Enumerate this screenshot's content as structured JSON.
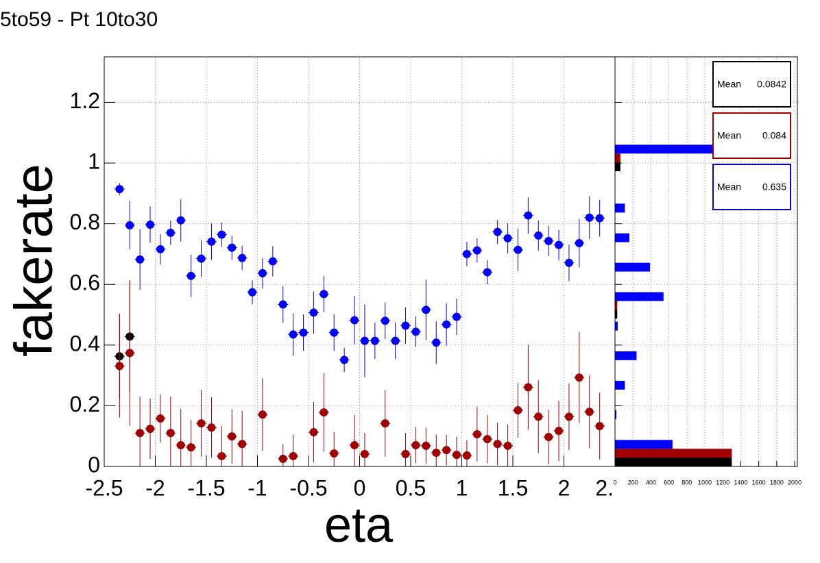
{
  "chart_data": [
    {
      "type": "scatter",
      "title": "5to59 - Pt 10to30",
      "xlabel": "eta",
      "ylabel": "fakerate",
      "x": [
        -2.35,
        -2.25,
        -2.15,
        -2.05,
        -1.95,
        -1.85,
        -1.75,
        -1.65,
        -1.55,
        -1.45,
        -1.35,
        -1.25,
        -1.15,
        -1.05,
        -0.95,
        -0.85,
        -0.75,
        -0.65,
        -0.55,
        -0.45,
        -0.35,
        -0.25,
        -0.15,
        -0.05,
        0.05,
        0.15,
        0.25,
        0.35,
        0.45,
        0.55,
        0.65,
        0.75,
        0.85,
        0.95,
        1.05,
        1.15,
        1.25,
        1.35,
        1.45,
        1.55,
        1.65,
        1.75,
        1.85,
        1.95,
        2.05,
        2.15,
        2.25,
        2.35
      ],
      "series": [
        {
          "color": "#000000",
          "values": [
            0.363,
            0.428,
            null,
            null,
            null,
            null,
            null,
            null,
            null,
            null,
            null,
            null,
            null,
            null,
            null,
            null,
            null,
            null,
            null,
            null,
            null,
            null,
            null,
            null,
            null,
            null,
            null,
            null,
            null,
            null,
            null,
            null,
            null,
            null,
            null,
            null,
            null,
            null,
            null,
            null,
            null,
            null,
            null,
            null,
            null,
            null,
            null,
            null
          ],
          "errors": [
            0.14,
            0.18,
            null,
            null,
            null,
            null,
            null,
            null,
            null,
            null,
            null,
            null,
            null,
            null,
            null,
            null,
            null,
            null,
            null,
            null,
            null,
            null,
            null,
            null,
            null,
            null,
            null,
            null,
            null,
            null,
            null,
            null,
            null,
            null,
            null,
            null,
            null,
            null,
            null,
            null,
            null,
            null,
            null,
            null,
            null,
            null,
            null,
            null
          ]
        },
        {
          "color": "#a00000",
          "values": [
            0.331,
            0.374,
            0.11,
            0.124,
            0.158,
            0.11,
            0.07,
            0.063,
            0.142,
            0.128,
            0.034,
            0.099,
            0.074,
            null,
            0.171,
            null,
            0.025,
            0.034,
            null,
            0.113,
            0.178,
            0.043,
            null,
            0.07,
            0.041,
            null,
            0.142,
            null,
            0.041,
            0.07,
            0.068,
            0.045,
            0.054,
            0.038,
            0.036,
            0.106,
            0.09,
            0.074,
            0.068,
            0.185,
            0.261,
            0.164,
            0.097,
            0.117,
            0.164,
            0.293,
            0.18,
            0.133
          ],
          "errors": [
            0.17,
            0.24,
            0.12,
            0.1,
            0.08,
            0.12,
            0.12,
            0.09,
            0.11,
            0.1,
            0.1,
            0.09,
            0.11,
            null,
            0.12,
            null,
            0.05,
            0.07,
            null,
            0.1,
            0.13,
            0.07,
            null,
            0.1,
            0.07,
            null,
            0.11,
            null,
            0.07,
            0.06,
            0.06,
            0.06,
            0.05,
            0.06,
            0.05,
            0.09,
            0.08,
            0.07,
            0.07,
            0.09,
            0.14,
            0.12,
            0.09,
            0.1,
            0.11,
            0.15,
            0.12,
            0.11
          ]
        },
        {
          "color": "#0000ff",
          "values": [
            0.914,
            0.795,
            0.682,
            0.797,
            0.716,
            0.77,
            0.811,
            0.628,
            0.685,
            0.741,
            0.764,
            0.721,
            0.687,
            0.574,
            0.637,
            0.676,
            0.534,
            0.435,
            0.441,
            0.507,
            0.568,
            0.441,
            0.351,
            0.482,
            0.414,
            0.414,
            0.48,
            0.414,
            0.464,
            0.444,
            0.516,
            0.408,
            0.468,
            0.493,
            0.7,
            0.712,
            0.64,
            0.773,
            0.752,
            0.714,
            0.827,
            0.761,
            0.743,
            0.73,
            0.671,
            0.736,
            0.82,
            0.818
          ],
          "errors": [
            0.02,
            0.08,
            0.1,
            0.06,
            0.05,
            0.04,
            0.07,
            0.07,
            0.06,
            0.06,
            0.04,
            0.04,
            0.04,
            0.04,
            0.05,
            0.05,
            0.06,
            0.07,
            0.06,
            0.07,
            0.06,
            0.06,
            0.04,
            0.08,
            0.12,
            0.06,
            0.06,
            0.06,
            0.06,
            0.05,
            0.1,
            0.07,
            0.07,
            0.06,
            0.04,
            0.04,
            0.04,
            0.04,
            0.05,
            0.07,
            0.06,
            0.05,
            0.05,
            0.05,
            0.06,
            0.08,
            0.07,
            0.06
          ]
        }
      ],
      "xlim": [
        -2.5,
        2.5
      ],
      "xticks": [
        -2.5,
        -2,
        -1.5,
        -1,
        -0.5,
        0,
        0.5,
        1,
        1.5,
        2,
        {
          "value": 2.5,
          "label": "2."
        }
      ],
      "ylim": [
        0,
        1.35
      ],
      "yticks": [
        0,
        0.2,
        0.4,
        0.6,
        0.8,
        1,
        1.2
      ],
      "grid": true
    },
    {
      "type": "histogram",
      "orientation": "horizontal",
      "bins": [
        0,
        0.097,
        0.195,
        0.292,
        0.389,
        0.487,
        0.584,
        0.681,
        0.778,
        0.876,
        0.973,
        1.07,
        1.168,
        1.265,
        1.362
      ],
      "series": [
        {
          "color": "#000000",
          "values": [
            1300,
            0,
            0,
            0,
            0,
            25,
            0,
            0,
            0,
            0,
            60,
            0,
            0,
            0
          ],
          "stats": {
            "label": "Mean",
            "value": 0.0842
          }
        },
        {
          "color": "#a00000",
          "values": [
            1300,
            0,
            0,
            0,
            0,
            25,
            0,
            0,
            0,
            0,
            60,
            0,
            0,
            0
          ],
          "stats": {
            "label": "Mean",
            "value": 0.084
          }
        },
        {
          "color": "#0000ff",
          "values": [
            640,
            15,
            110,
            240,
            30,
            540,
            390,
            160,
            110,
            0,
            1100,
            0,
            0,
            0
          ],
          "stats": {
            "label": "Mean",
            "value": 0.635
          }
        }
      ],
      "xlim": [
        0,
        2030
      ],
      "xticks": [
        0,
        200,
        400,
        600,
        800,
        1000,
        1200,
        1400,
        1600,
        1800,
        2000
      ],
      "ylim": [
        0,
        1.35
      ],
      "yticks": [
        0,
        0.2,
        0.4,
        0.6,
        0.8,
        1,
        1.2
      ],
      "grid": true
    }
  ]
}
